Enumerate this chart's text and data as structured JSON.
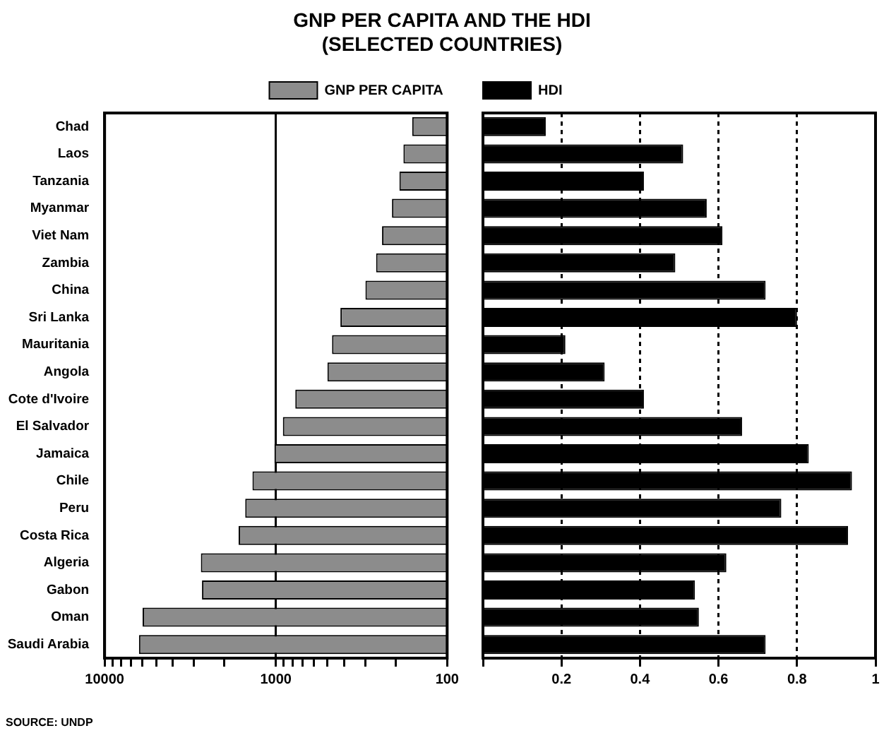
{
  "chart_data": [
    {
      "type": "bar",
      "orientation": "horizontal",
      "title": "GNP PER CAPITA AND THE HDI\n(SELECTED COUNTRIES)",
      "categories": [
        "Chad",
        "Laos",
        "Tanzania",
        "Myanmar",
        "Viet Nam",
        "Zambia",
        "China",
        "Sri Lanka",
        "Mauritania",
        "Angola",
        "Cote d'Ivoire",
        "El Salvador",
        "Jamaica",
        "Chile",
        "Peru",
        "Costa Rica",
        "Algeria",
        "Gabon",
        "Oman",
        "Saudi Arabia"
      ],
      "series": [
        {
          "name": "GNP PER CAPITA",
          "color": "#8c8c8c",
          "values": [
            160,
            180,
            190,
            210,
            240,
            260,
            300,
            420,
            470,
            500,
            770,
            910,
            1020,
            1370,
            1510,
            1650,
            2740,
            2700,
            6000,
            6300
          ]
        }
      ],
      "log": "x",
      "xlim": [
        10000,
        100
      ],
      "xticks": [
        10000,
        {
          "value": 9000,
          "label": null
        },
        {
          "value": 8000,
          "label": null
        },
        {
          "value": 7000,
          "label": null
        },
        {
          "value": 6000,
          "label": null
        },
        {
          "value": 5000,
          "label": null
        },
        {
          "value": 4000,
          "label": null
        },
        {
          "value": 3000,
          "label": null
        },
        {
          "value": 2000,
          "label": null
        },
        1000,
        {
          "value": 900,
          "label": null
        },
        {
          "value": 800,
          "label": null
        },
        {
          "value": 700,
          "label": null
        },
        {
          "value": 600,
          "label": null
        },
        {
          "value": 500,
          "label": null
        },
        {
          "value": 400,
          "label": null
        },
        {
          "value": 300,
          "label": null
        },
        {
          "value": 200,
          "label": null
        },
        100
      ],
      "grid": "x",
      "legend": "top",
      "annotations": [
        "SOURCE: UNDP"
      ]
    },
    {
      "type": "bar",
      "orientation": "horizontal",
      "categories": [
        null,
        null,
        null,
        null,
        null,
        null,
        null,
        null,
        null,
        null,
        null,
        null,
        null,
        null,
        null,
        null,
        null,
        null,
        null,
        null
      ],
      "series": [
        {
          "name": "HDI",
          "color": "#000000",
          "values": [
            0.16,
            0.51,
            0.41,
            0.57,
            0.61,
            0.49,
            0.72,
            0.8,
            0.21,
            0.31,
            0.41,
            0.66,
            0.83,
            0.94,
            0.76,
            0.93,
            0.62,
            0.54,
            0.55,
            0.72
          ]
        }
      ],
      "xlim": [
        0,
        1
      ],
      "xticks": [
        {
          "value": 0,
          "label": null
        },
        0.2,
        0.4,
        0.6,
        0.8,
        1
      ],
      "grid": "x",
      "legend": "top"
    }
  ]
}
